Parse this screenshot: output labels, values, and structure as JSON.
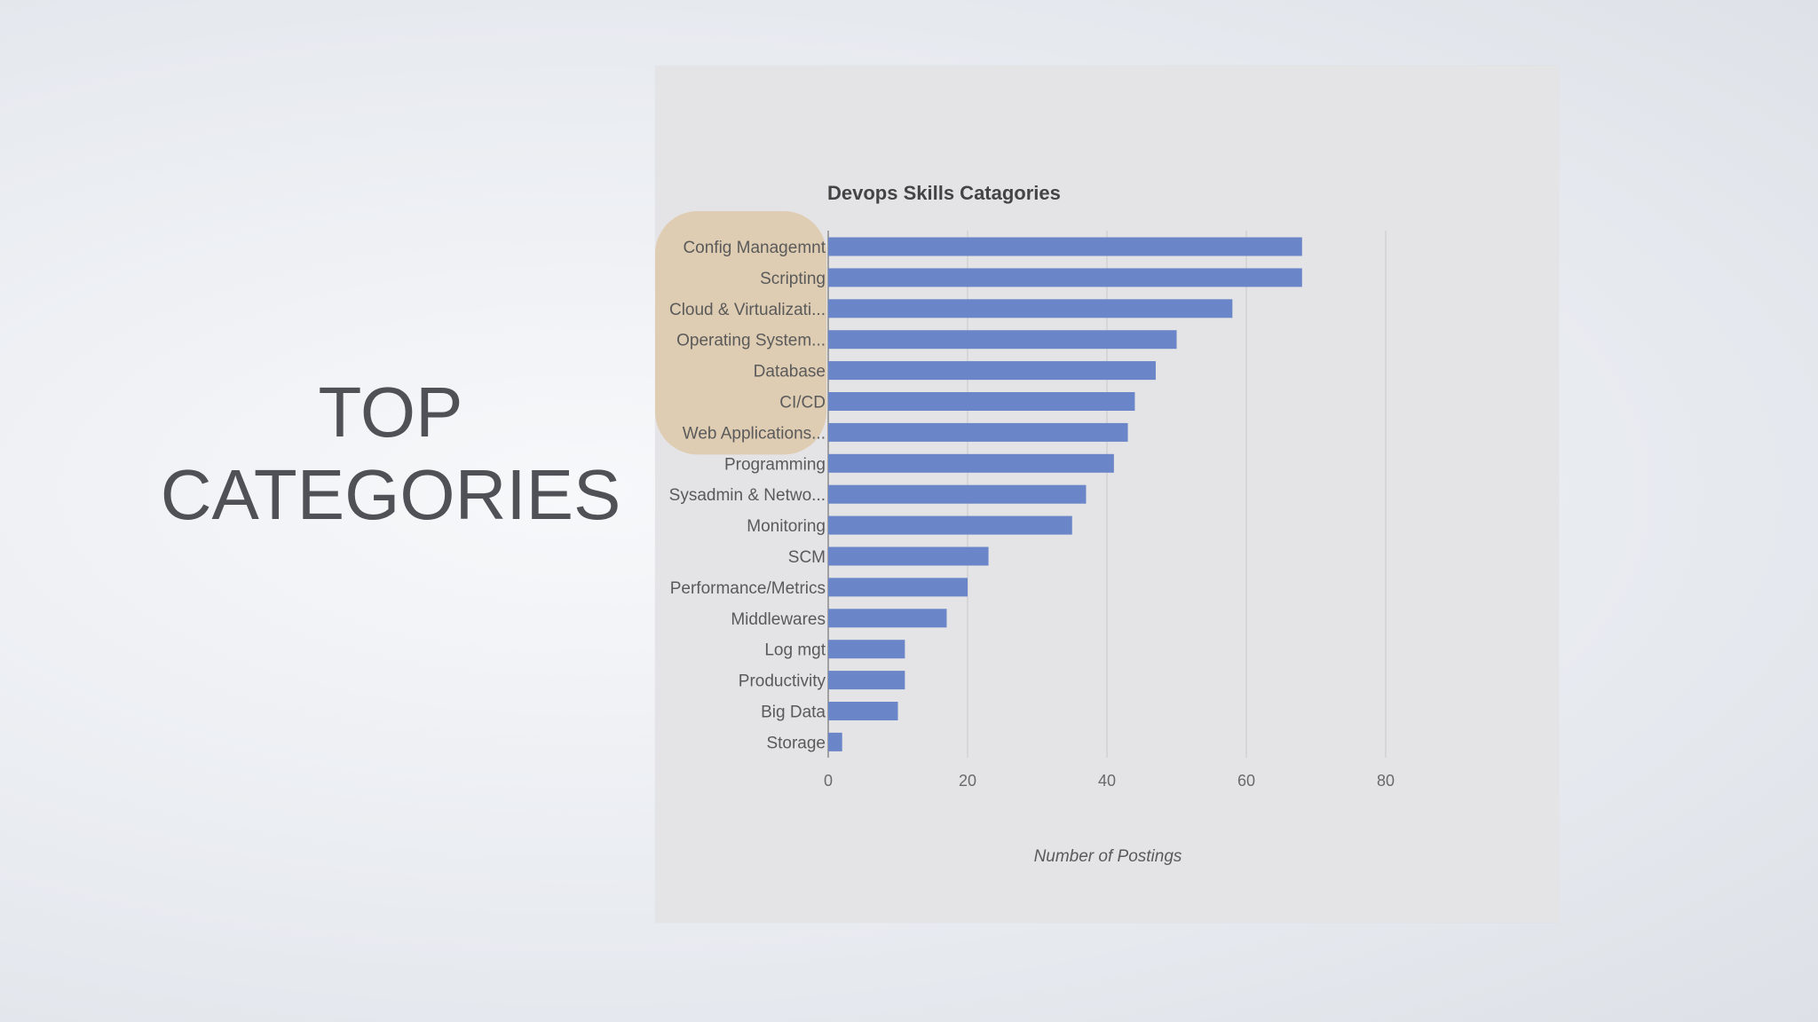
{
  "slide": {
    "title_line1": "TOP",
    "title_line2": "CATEGORIES"
  },
  "colors": {
    "bar": "#6a86c8",
    "highlight": "#dfcdb3",
    "grid": "#c7c7c9",
    "axis": "#8a8a8a"
  },
  "chart_data": {
    "type": "bar",
    "orientation": "horizontal",
    "title": "Devops Skills Catagories",
    "xlabel": "Number of Postings",
    "ylabel": "",
    "xlim": [
      0,
      80
    ],
    "xticks": [
      0,
      20,
      40,
      60,
      80
    ],
    "grid": true,
    "legend": "none",
    "highlighted_categories": [
      "Config Managemnt",
      "Scripting",
      "Cloud & Virtualizati...",
      "Operating System...",
      "Database",
      "CI/CD",
      "Web Applications..."
    ],
    "categories": [
      "Config Managemnt",
      "Scripting",
      "Cloud & Virtualizati...",
      "Operating System...",
      "Database",
      "CI/CD",
      "Web Applications...",
      "Programming",
      "Sysadmin & Netwo...",
      "Monitoring",
      "SCM",
      "Performance/Metrics",
      "Middlewares",
      "Log mgt",
      "Productivity",
      "Big Data",
      "Storage"
    ],
    "values": [
      68,
      68,
      58,
      50,
      47,
      44,
      43,
      41,
      37,
      35,
      23,
      20,
      17,
      11,
      11,
      10,
      2
    ]
  }
}
